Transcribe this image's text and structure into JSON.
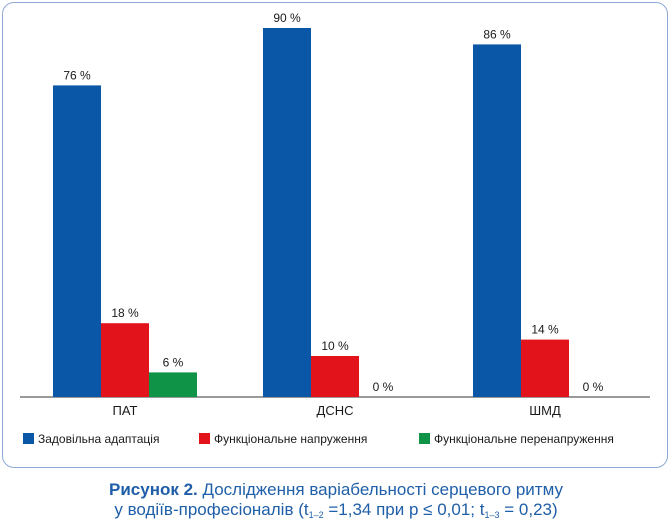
{
  "chart_data": {
    "type": "bar",
    "categories": [
      "ПАТ",
      "ДСНС",
      "ШМД"
    ],
    "series": [
      {
        "name": "Задовільна адаптація",
        "color": "#0a57a8",
        "values": [
          76,
          90,
          86
        ]
      },
      {
        "name": "Функціональне напруження",
        "color": "#e3131b",
        "values": [
          18,
          10,
          14
        ]
      },
      {
        "name": "Функціональне перенапруження",
        "color": "#0f9447",
        "values": [
          6,
          0,
          0
        ]
      }
    ],
    "value_labels": [
      [
        "76 %",
        "90 %",
        "86 %"
      ],
      [
        "18 %",
        "10 %",
        "14 %"
      ],
      [
        "6 %",
        "0 %",
        "0 %"
      ]
    ],
    "ylim": [
      0,
      100
    ],
    "legend_position": "bottom",
    "grid": false
  },
  "caption": {
    "figure_label": "Рисунок 2.",
    "text_line1": "Дослідження варіабельності серцевого ритму",
    "text_line2_a": "у водіїв-професіоналів (t",
    "sub1": "1–2",
    "text_line2_b": "=1,34 при p ≤ 0,01; t",
    "sub2": "1–3",
    "text_line2_c": "= 0,23)"
  }
}
